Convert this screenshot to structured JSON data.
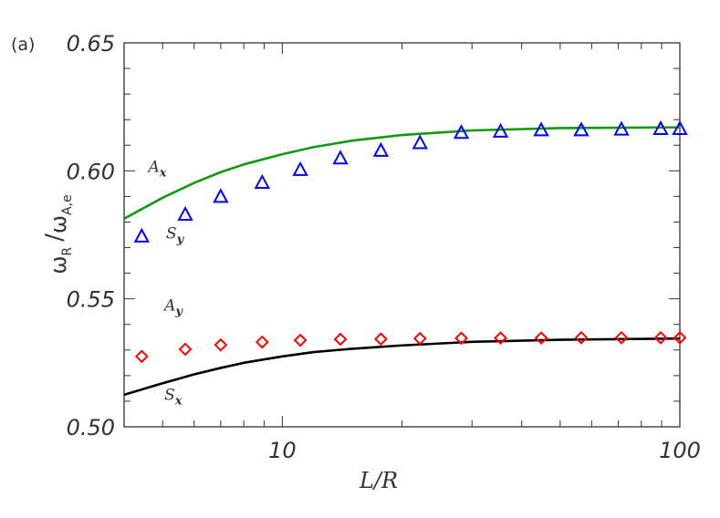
{
  "chart_data": {
    "type": "scatter",
    "panel_label": "(a)",
    "xlabel": "L/R",
    "ylabel": {
      "main": "ω",
      "sub_num": "R",
      "sep": "/",
      "den": "ω",
      "sub_den": "A,e"
    },
    "xscale": "log",
    "xlim": [
      4,
      100
    ],
    "ylim": [
      0.5,
      0.65
    ],
    "xticks": [
      {
        "v": 10,
        "label": "10"
      },
      {
        "v": 100,
        "label": "100"
      }
    ],
    "yticks": [
      {
        "v": 0.5,
        "label": "0.50"
      },
      {
        "v": 0.55,
        "label": "0.55"
      },
      {
        "v": 0.6,
        "label": "0.60"
      },
      {
        "v": 0.65,
        "label": "0.65"
      }
    ],
    "series": [
      {
        "name": "A_x",
        "kind": "line",
        "color": "#129912",
        "x": [
          4,
          5,
          6,
          7,
          8,
          10,
          12,
          15,
          20,
          30,
          50,
          100
        ],
        "y": [
          0.5813,
          0.5895,
          0.5953,
          0.5995,
          0.6025,
          0.6065,
          0.6093,
          0.6118,
          0.614,
          0.6158,
          0.6167,
          0.617
        ]
      },
      {
        "name": "S_x",
        "kind": "line",
        "color": "#000000",
        "x": [
          4,
          5,
          6,
          7,
          8,
          10,
          12,
          15,
          20,
          30,
          50,
          100
        ],
        "y": [
          0.5125,
          0.517,
          0.5205,
          0.523,
          0.525,
          0.5275,
          0.5292,
          0.5305,
          0.5318,
          0.5332,
          0.534,
          0.5345
        ]
      },
      {
        "name": "S_y",
        "kind": "marker",
        "marker": "triangle",
        "color": "#0000ff",
        "x": [
          4.43,
          5.7,
          7.0,
          8.9,
          11.1,
          14.0,
          17.7,
          22.2,
          28.2,
          35.4,
          44.8,
          56.5,
          71.3,
          89.5,
          100
        ],
        "y": [
          0.5745,
          0.583,
          0.59,
          0.5955,
          0.6005,
          0.605,
          0.608,
          0.611,
          0.615,
          0.6155,
          0.616,
          0.616,
          0.6163,
          0.6165,
          0.6165
        ]
      },
      {
        "name": "A_y",
        "kind": "marker",
        "marker": "diamond",
        "color": "#ff0000",
        "x": [
          4.43,
          5.7,
          7.0,
          8.9,
          11.1,
          14.0,
          17.7,
          22.2,
          28.2,
          35.4,
          44.8,
          56.5,
          71.3,
          89.5,
          100
        ],
        "y": [
          0.5275,
          0.5303,
          0.532,
          0.5331,
          0.5338,
          0.5342,
          0.5343,
          0.5345,
          0.5346,
          0.5347,
          0.5347,
          0.5348,
          0.5348,
          0.5348,
          0.5348
        ]
      }
    ],
    "annotations": [
      {
        "base": "A",
        "sub": "x",
        "x": 4.6,
        "y": 0.5995
      },
      {
        "base": "S",
        "sub": "y",
        "x": 5.1,
        "y": 0.5735
      },
      {
        "base": "A",
        "sub": "y",
        "x": 5.05,
        "y": 0.5455
      },
      {
        "base": "S",
        "sub": "x",
        "x": 5.05,
        "y": 0.5105
      }
    ]
  }
}
